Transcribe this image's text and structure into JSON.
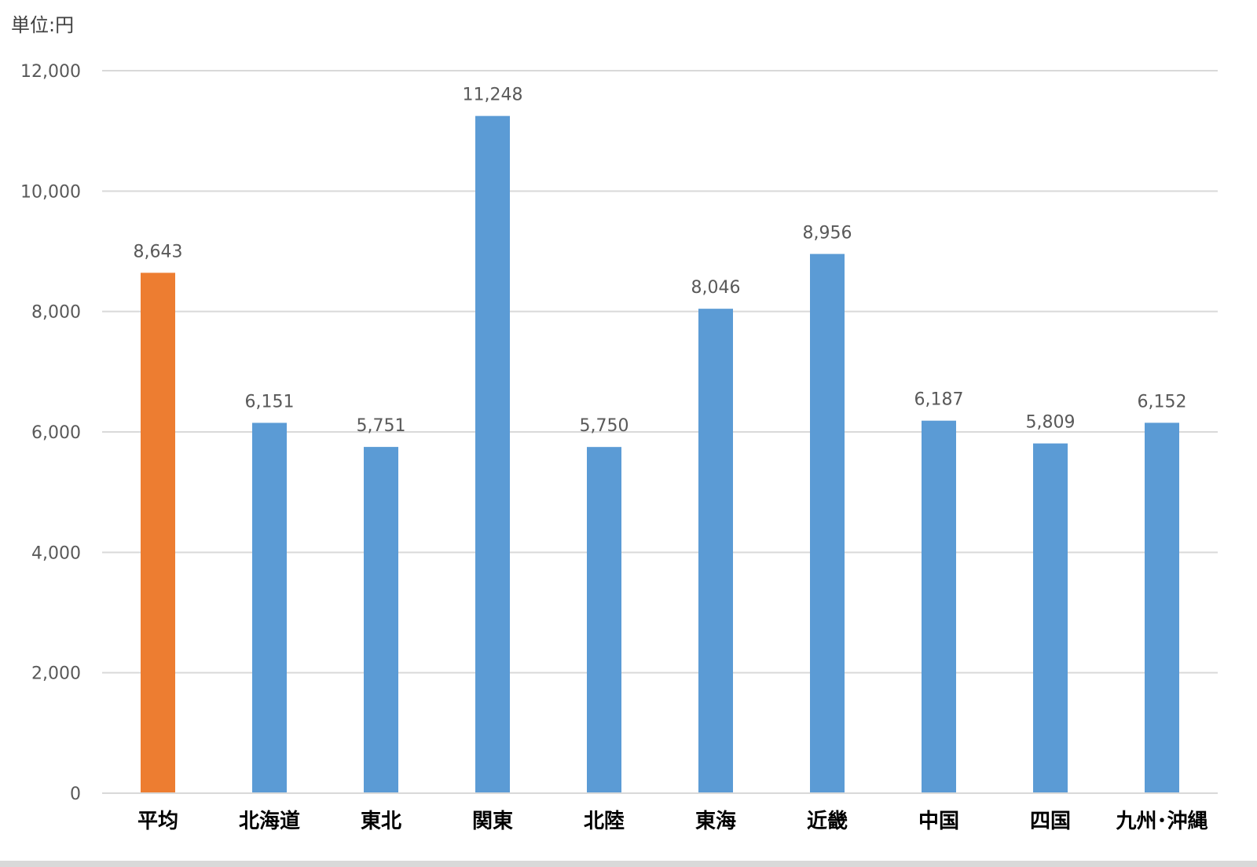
{
  "unit_label": "単位:円",
  "chart_data": {
    "type": "bar",
    "categories": [
      "平均",
      "北海道",
      "東北",
      "関東",
      "北陸",
      "東海",
      "近畿",
      "中国",
      "四国",
      "九州･沖縄"
    ],
    "values": [
      8643,
      6151,
      5751,
      11248,
      5750,
      8046,
      8956,
      6187,
      5809,
      6152
    ],
    "value_labels": [
      "8,643",
      "6,151",
      "5,751",
      "11,248",
      "5,750",
      "8,046",
      "8,956",
      "6,187",
      "5,809",
      "6,152"
    ],
    "bar_colors": [
      "#ed7d31",
      "#5b9bd5",
      "#5b9bd5",
      "#5b9bd5",
      "#5b9bd5",
      "#5b9bd5",
      "#5b9bd5",
      "#5b9bd5",
      "#5b9bd5",
      "#5b9bd5"
    ],
    "ylim": [
      0,
      12000
    ],
    "yticks": [
      0,
      2000,
      4000,
      6000,
      8000,
      10000,
      12000
    ],
    "ytick_labels": [
      "0",
      "2,000",
      "4,000",
      "6,000",
      "8,000",
      "10,000",
      "12,000"
    ],
    "grid": true,
    "title": "",
    "xlabel": "",
    "ylabel": "",
    "grid_color": "#d9d9d9",
    "axis_text_color": "#595959",
    "category_text_color": "#000000"
  }
}
